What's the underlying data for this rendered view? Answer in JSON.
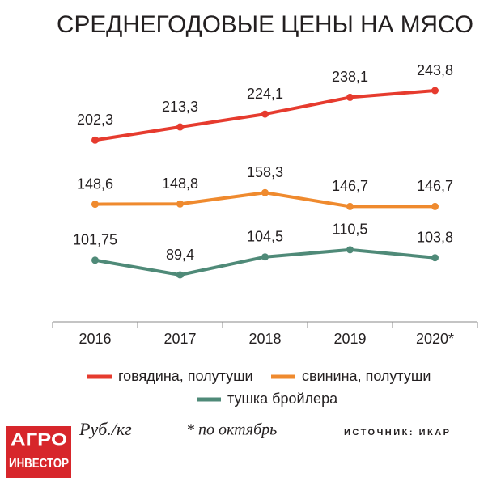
{
  "chart_data": {
    "type": "line",
    "title": "СРЕДНЕГОДОВЫЕ ЦЕНЫ НА МЯСО",
    "categories": [
      "2016",
      "2017",
      "2018",
      "2019",
      "2020*"
    ],
    "series": [
      {
        "name": "говядина, полутуши",
        "color": "#e63b2e",
        "values": [
          202.3,
          213.3,
          224.1,
          238.1,
          243.8
        ],
        "value_labels": [
          "202,3",
          "213,3",
          "224,1",
          "238,1",
          "243,8"
        ]
      },
      {
        "name": "свинина, полутуши",
        "color": "#ef8a2e",
        "values": [
          148.6,
          148.8,
          158.3,
          146.7,
          146.7
        ],
        "value_labels": [
          "148,6",
          "148,8",
          "158,3",
          "146,7",
          "146,7"
        ]
      },
      {
        "name": "тушка бройлера",
        "color": "#4f8a78",
        "values": [
          101.75,
          89.4,
          104.5,
          110.5,
          103.8
        ],
        "value_labels": [
          "101,75",
          "89,4",
          "104,5",
          "110,5",
          "103,8"
        ]
      }
    ],
    "unit": "Руб./кг",
    "note": "* по октябрь",
    "source": "ИСТОЧНИК: ИКАР",
    "logo": [
      "АГРО",
      "ИНВЕСТОР"
    ]
  }
}
